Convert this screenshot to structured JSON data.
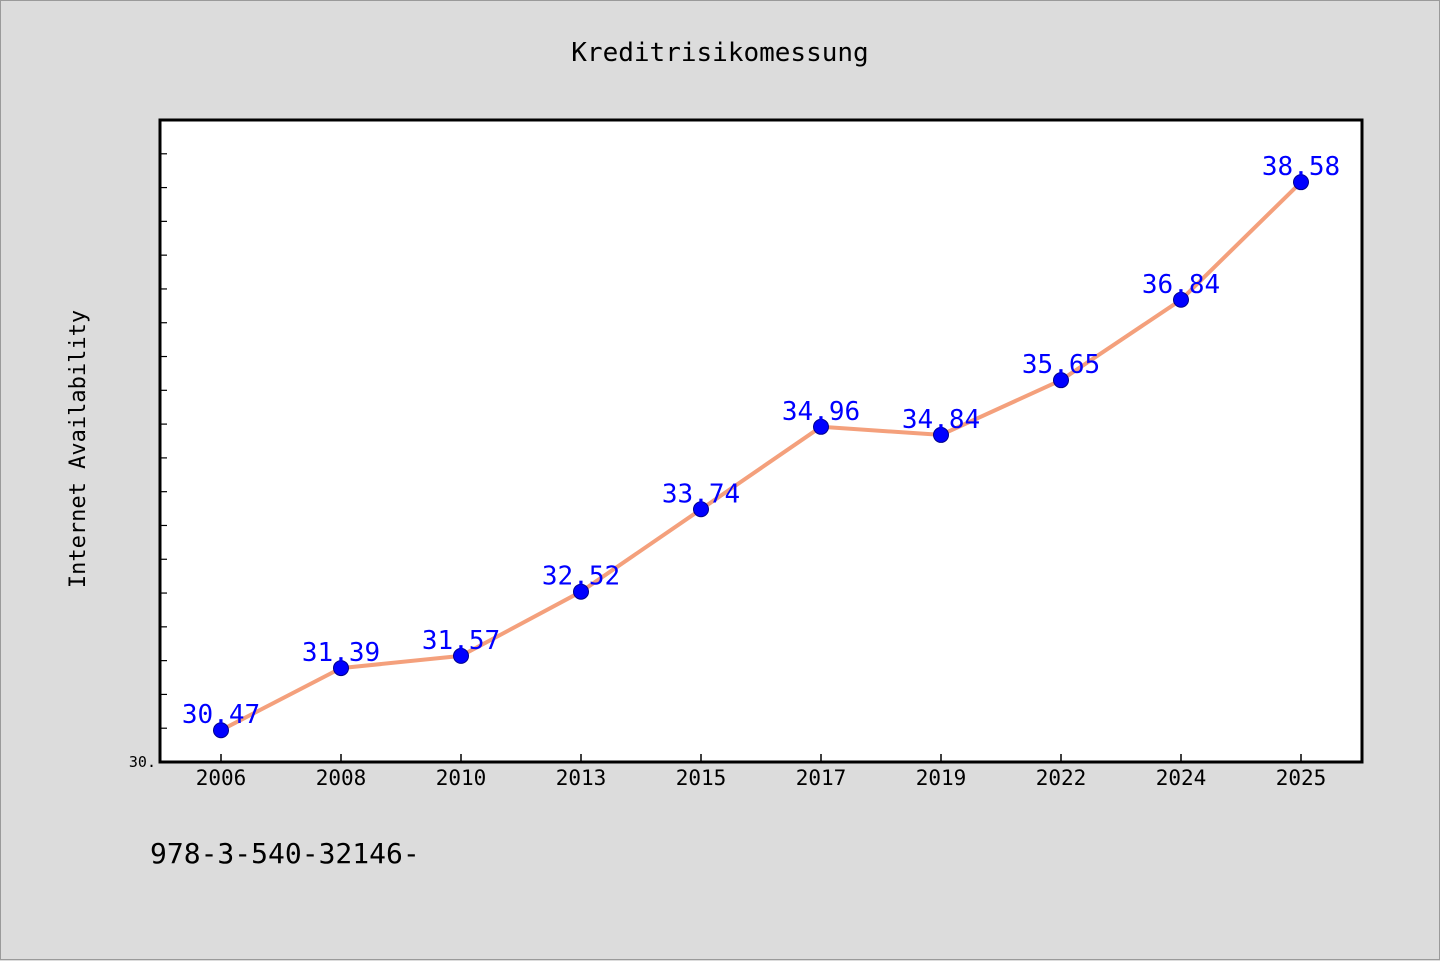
{
  "chart_data": {
    "type": "line",
    "title": "Kreditrisikomessung",
    "xlabel": "",
    "ylabel": "Internet Availability",
    "categories": [
      "2006",
      "2008",
      "2010",
      "2013",
      "2015",
      "2017",
      "2019",
      "2022",
      "2024",
      "2025"
    ],
    "series": [
      {
        "values": [
          30.47,
          31.39,
          31.57,
          32.52,
          33.74,
          34.96,
          34.84,
          35.65,
          36.84,
          38.58
        ],
        "labels": [
          "30.47",
          "31.39",
          "31.57",
          "32.52",
          "33.74",
          "34.96",
          "34.84",
          "35.65",
          "36.84",
          "38.58"
        ]
      }
    ],
    "ylim": [
      30.0,
      39.5
    ],
    "y_tick_label": "30.",
    "grid": false,
    "line_color": "#f4a07c",
    "marker_color": "#0000ff",
    "label_color": "#0000ff"
  },
  "footnote": "978-3-540-32146-"
}
